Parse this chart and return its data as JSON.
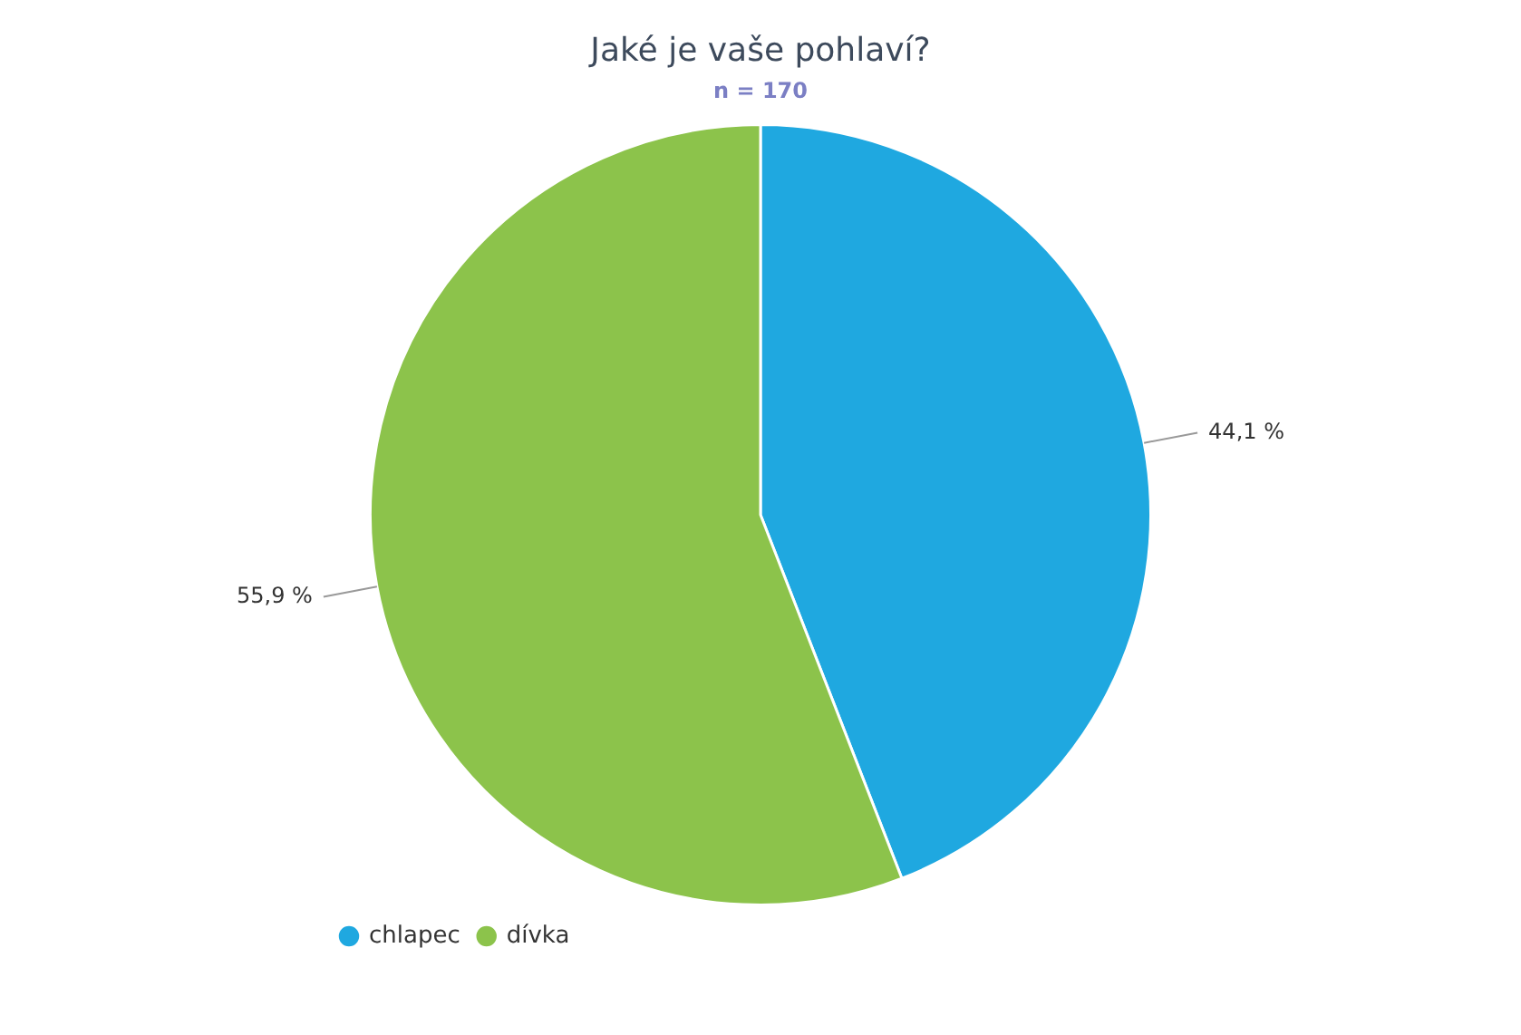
{
  "chart_data": {
    "type": "pie",
    "title": "Jaké je vaše pohlaví?",
    "subtitle": "n = 170",
    "categories": [
      "chlapec",
      "dívka"
    ],
    "values": [
      44.1,
      55.9
    ],
    "colors": [
      "#1fa8e0",
      "#8cc34b"
    ],
    "value_labels": [
      "44,1 %",
      "55,9 %"
    ],
    "legend": "bottom left"
  }
}
